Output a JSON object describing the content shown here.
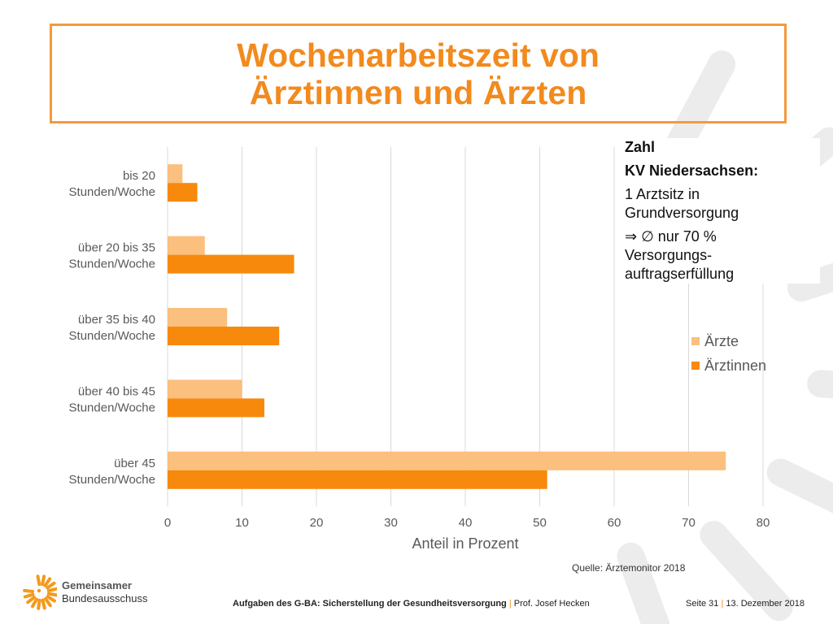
{
  "title": {
    "line1": "Wochenarbeitszeit von",
    "line2": "Ärztinnen und Ärzten"
  },
  "colors": {
    "accent": "#f28a1e",
    "aerzte": "#fbbf7e",
    "aerztinnen": "#f7890c",
    "decor": "#ececec",
    "grid": "#d9d9d9"
  },
  "chart_data": {
    "type": "bar",
    "orientation": "horizontal",
    "categories": [
      [
        "bis 20",
        "Stunden/Woche"
      ],
      [
        "über 20 bis 35",
        "Stunden/Woche"
      ],
      [
        "über 35 bis 40",
        "Stunden/Woche"
      ],
      [
        "über 40 bis 45",
        "Stunden/Woche"
      ],
      [
        "über 45",
        "Stunden/Woche"
      ]
    ],
    "series": [
      {
        "name": "Ärzte",
        "values": [
          2,
          5,
          8,
          10,
          75
        ]
      },
      {
        "name": "Ärztinnen",
        "values": [
          4,
          17,
          15,
          13,
          51
        ]
      }
    ],
    "xlabel": "Anteil in Prozent",
    "xlim": [
      0,
      80
    ],
    "xticks": [
      0,
      10,
      20,
      30,
      40,
      50,
      60,
      70,
      80
    ],
    "grid": "vertical",
    "legend_position": "right"
  },
  "note": {
    "line1": "Zahl",
    "line2": "KV Niedersachsen:",
    "line3": "1 Arztsitz in",
    "line4": "Grundversorgung",
    "line5": "⇒ ∅ nur 70 %",
    "line6": "Versorgungs-",
    "line7": "auftragserfüllung"
  },
  "legend": {
    "item1": "Ärzte",
    "item2": "Ärztinnen"
  },
  "source": "Quelle: Ärztemonitor 2018",
  "logo": {
    "line1": "Gemeinsamer",
    "line2": "Bundesausschuss"
  },
  "footer": {
    "left": "Aufgaben des G-BA: Sicherstellung der Gesundheitsversorgung",
    "sep": "|",
    "author": "Prof. Josef Hecken",
    "page": "Seite 31",
    "date": "13. Dezember 2018"
  }
}
